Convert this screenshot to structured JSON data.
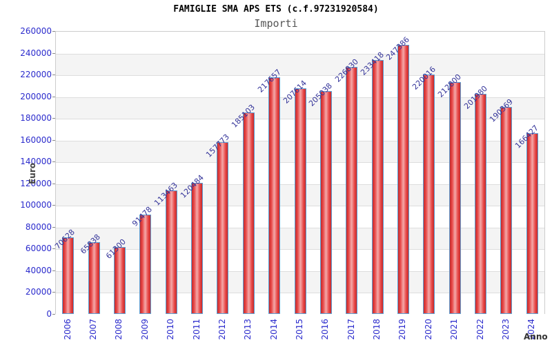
{
  "header": {
    "title": "FAMIGLIE SMA APS ETS (c.f.97231920584)",
    "subtitle": "Importi"
  },
  "chart_data": {
    "type": "bar",
    "title": "FAMIGLIE SMA APS ETS (c.f.97231920584)",
    "subtitle": "Importi",
    "xlabel": "Anno",
    "ylabel": "Euro",
    "categories": [
      "2006",
      "2007",
      "2008",
      "2009",
      "2010",
      "2011",
      "2012",
      "2013",
      "2014",
      "2015",
      "2016",
      "2017",
      "2018",
      "2019",
      "2020",
      "2021",
      "2022",
      "2023",
      "2024"
    ],
    "values": [
      70628,
      65838,
      61300,
      91478,
      113463,
      120484,
      157773,
      185103,
      217657,
      207614,
      205038,
      226830,
      233418,
      247386,
      220016,
      212800,
      201980,
      190369,
      166427
    ],
    "ylim": [
      0,
      260000
    ],
    "ytick_step": 20000,
    "grid": true,
    "legend_position": "none",
    "colors": {
      "bar_dark": "#c62a2a",
      "bar_mid": "#e84848",
      "bar_light": "#f4a9a9",
      "bar_edge": "#5b9fd4",
      "value_label": "#333399",
      "tick_label": "#2a2acc",
      "axis_title": "#444444",
      "band": "#f4f4f4",
      "gridline": "#dddddd",
      "plot_border": "#cccccc",
      "title": "#000000",
      "subtitle": "#555555"
    }
  }
}
